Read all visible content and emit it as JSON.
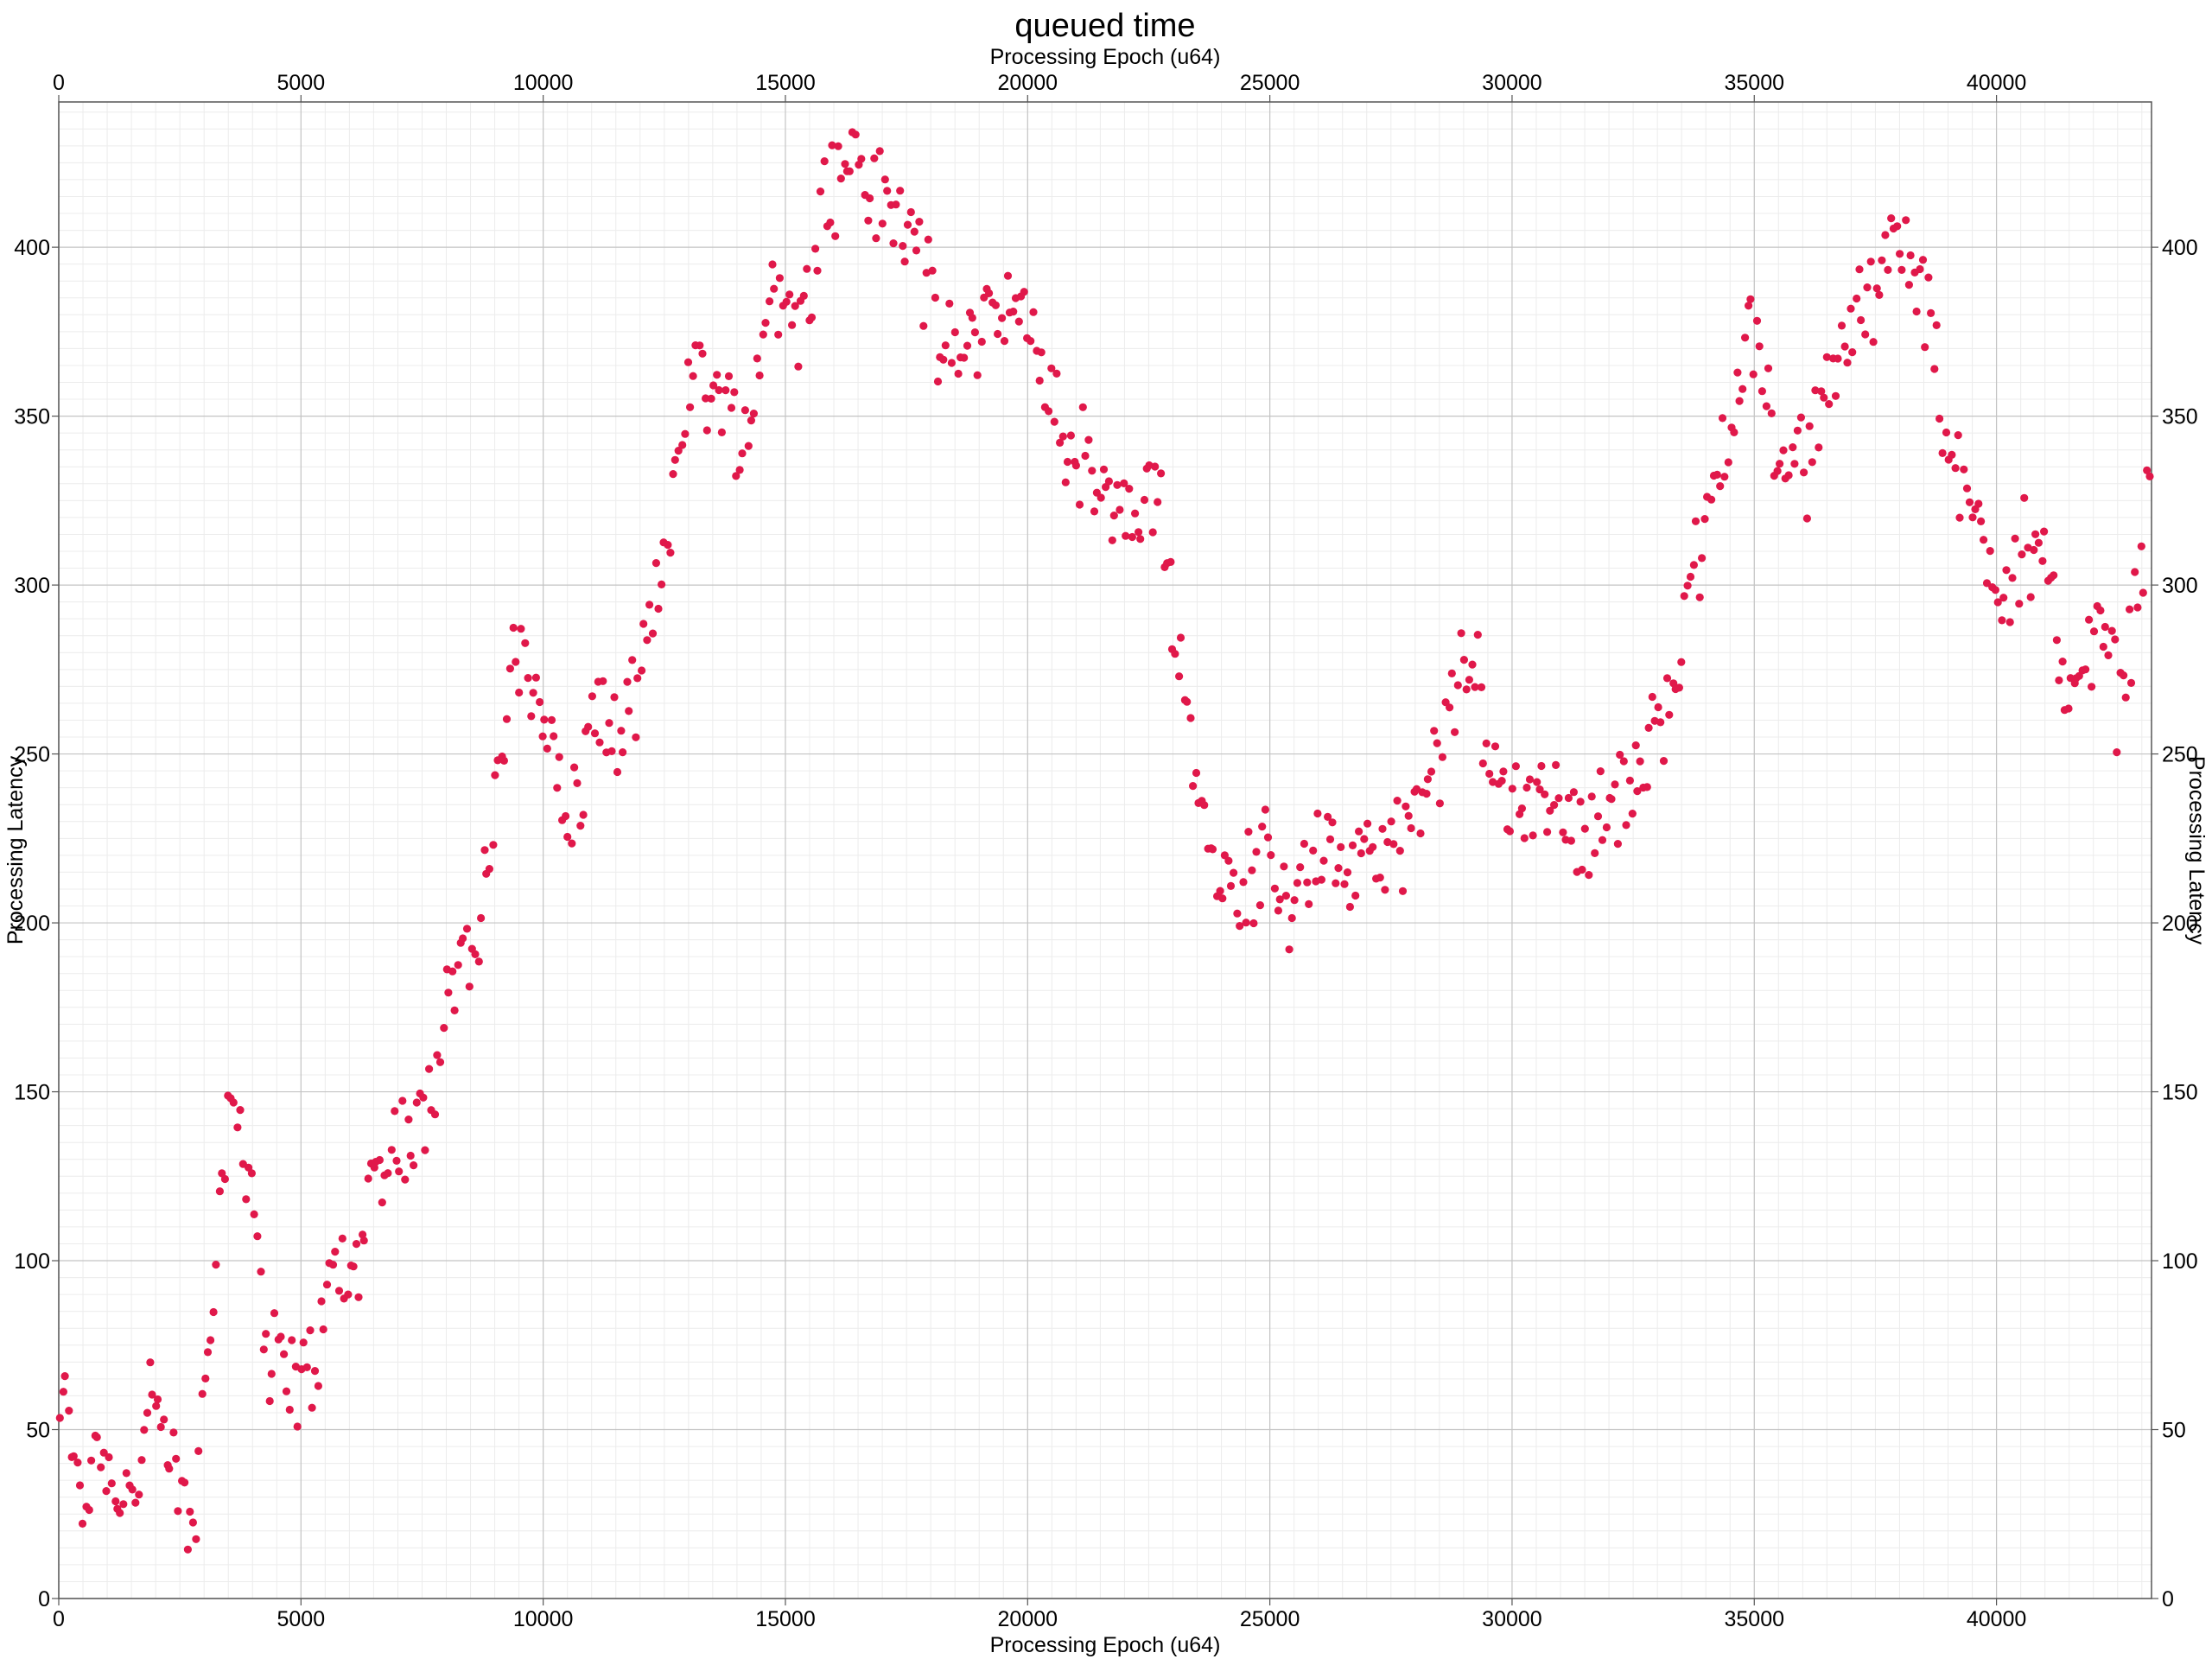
{
  "chart_data": {
    "type": "scatter",
    "title": "queued time",
    "xlabel_top": "Processing Epoch (u64)",
    "xlabel_bottom": "Processing Epoch (u64)",
    "ylabel_left": "Processing Latency",
    "ylabel_right": "Processing Latency",
    "xlim": [
      0,
      43200
    ],
    "ylim": [
      0,
      443
    ],
    "x_ticks": [
      0,
      5000,
      10000,
      15000,
      20000,
      25000,
      30000,
      35000,
      40000
    ],
    "y_ticks": [
      0,
      50,
      100,
      150,
      200,
      250,
      300,
      350,
      400
    ],
    "grid": true,
    "legend": "none",
    "marker_color": "#e0184a",
    "anchors": [
      [
        0,
        58
      ],
      [
        300,
        48
      ],
      [
        500,
        20
      ],
      [
        700,
        48
      ],
      [
        1000,
        40
      ],
      [
        1300,
        32
      ],
      [
        1600,
        34
      ],
      [
        1900,
        58
      ],
      [
        2200,
        45
      ],
      [
        2500,
        30
      ],
      [
        2800,
        18
      ],
      [
        3000,
        65
      ],
      [
        3200,
        100
      ],
      [
        3500,
        140
      ],
      [
        3700,
        145
      ],
      [
        3900,
        132
      ],
      [
        4100,
        108
      ],
      [
        4300,
        72
      ],
      [
        4700,
        68
      ],
      [
        5000,
        62
      ],
      [
        5300,
        72
      ],
      [
        5700,
        100
      ],
      [
        6000,
        92
      ],
      [
        6400,
        118
      ],
      [
        6800,
        132
      ],
      [
        7200,
        138
      ],
      [
        7700,
        148
      ],
      [
        7900,
        178
      ],
      [
        8300,
        190
      ],
      [
        8700,
        190
      ],
      [
        9000,
        238
      ],
      [
        9400,
        275
      ],
      [
        9800,
        275
      ],
      [
        10100,
        262
      ],
      [
        10400,
        230
      ],
      [
        10800,
        238
      ],
      [
        11100,
        268
      ],
      [
        11500,
        252
      ],
      [
        11900,
        262
      ],
      [
        12200,
        285
      ],
      [
        12500,
        305
      ],
      [
        12800,
        348
      ],
      [
        13200,
        365
      ],
      [
        13600,
        355
      ],
      [
        14000,
        345
      ],
      [
        14300,
        348
      ],
      [
        14700,
        395
      ],
      [
        15000,
        380
      ],
      [
        15400,
        378
      ],
      [
        15700,
        415
      ],
      [
        16100,
        420
      ],
      [
        16500,
        428
      ],
      [
        16800,
        415
      ],
      [
        17200,
        410
      ],
      [
        17700,
        405
      ],
      [
        18200,
        368
      ],
      [
        18600,
        368
      ],
      [
        19000,
        378
      ],
      [
        19500,
        385
      ],
      [
        19900,
        375
      ],
      [
        20300,
        368
      ],
      [
        20800,
        340
      ],
      [
        21200,
        338
      ],
      [
        21700,
        320
      ],
      [
        22100,
        320
      ],
      [
        22400,
        318
      ],
      [
        22700,
        328
      ],
      [
        23000,
        295
      ],
      [
        23300,
        262
      ],
      [
        23600,
        235
      ],
      [
        24000,
        215
      ],
      [
        24300,
        205
      ],
      [
        24600,
        215
      ],
      [
        25000,
        222
      ],
      [
        25400,
        208
      ],
      [
        25800,
        215
      ],
      [
        26300,
        222
      ],
      [
        26700,
        215
      ],
      [
        27200,
        218
      ],
      [
        27700,
        225
      ],
      [
        28200,
        232
      ],
      [
        28600,
        255
      ],
      [
        28900,
        270
      ],
      [
        29300,
        272
      ],
      [
        29600,
        245
      ],
      [
        30000,
        235
      ],
      [
        30500,
        242
      ],
      [
        30900,
        238
      ],
      [
        31300,
        228
      ],
      [
        31700,
        230
      ],
      [
        32100,
        235
      ],
      [
        32500,
        240
      ],
      [
        32900,
        252
      ],
      [
        33200,
        268
      ],
      [
        33600,
        290
      ],
      [
        34000,
        318
      ],
      [
        34400,
        345
      ],
      [
        34800,
        368
      ],
      [
        35100,
        372
      ],
      [
        35400,
        345
      ],
      [
        35800,
        332
      ],
      [
        36200,
        338
      ],
      [
        36600,
        365
      ],
      [
        37000,
        375
      ],
      [
        37400,
        385
      ],
      [
        37800,
        410
      ],
      [
        38200,
        395
      ],
      [
        38600,
        380
      ],
      [
        39000,
        338
      ],
      [
        39400,
        325
      ],
      [
        39800,
        312
      ],
      [
        40200,
        300
      ],
      [
        40600,
        315
      ],
      [
        41000,
        300
      ],
      [
        41400,
        275
      ],
      [
        41800,
        275
      ],
      [
        42200,
        285
      ],
      [
        42500,
        265
      ],
      [
        42800,
        285
      ],
      [
        43200,
        338
      ]
    ]
  }
}
